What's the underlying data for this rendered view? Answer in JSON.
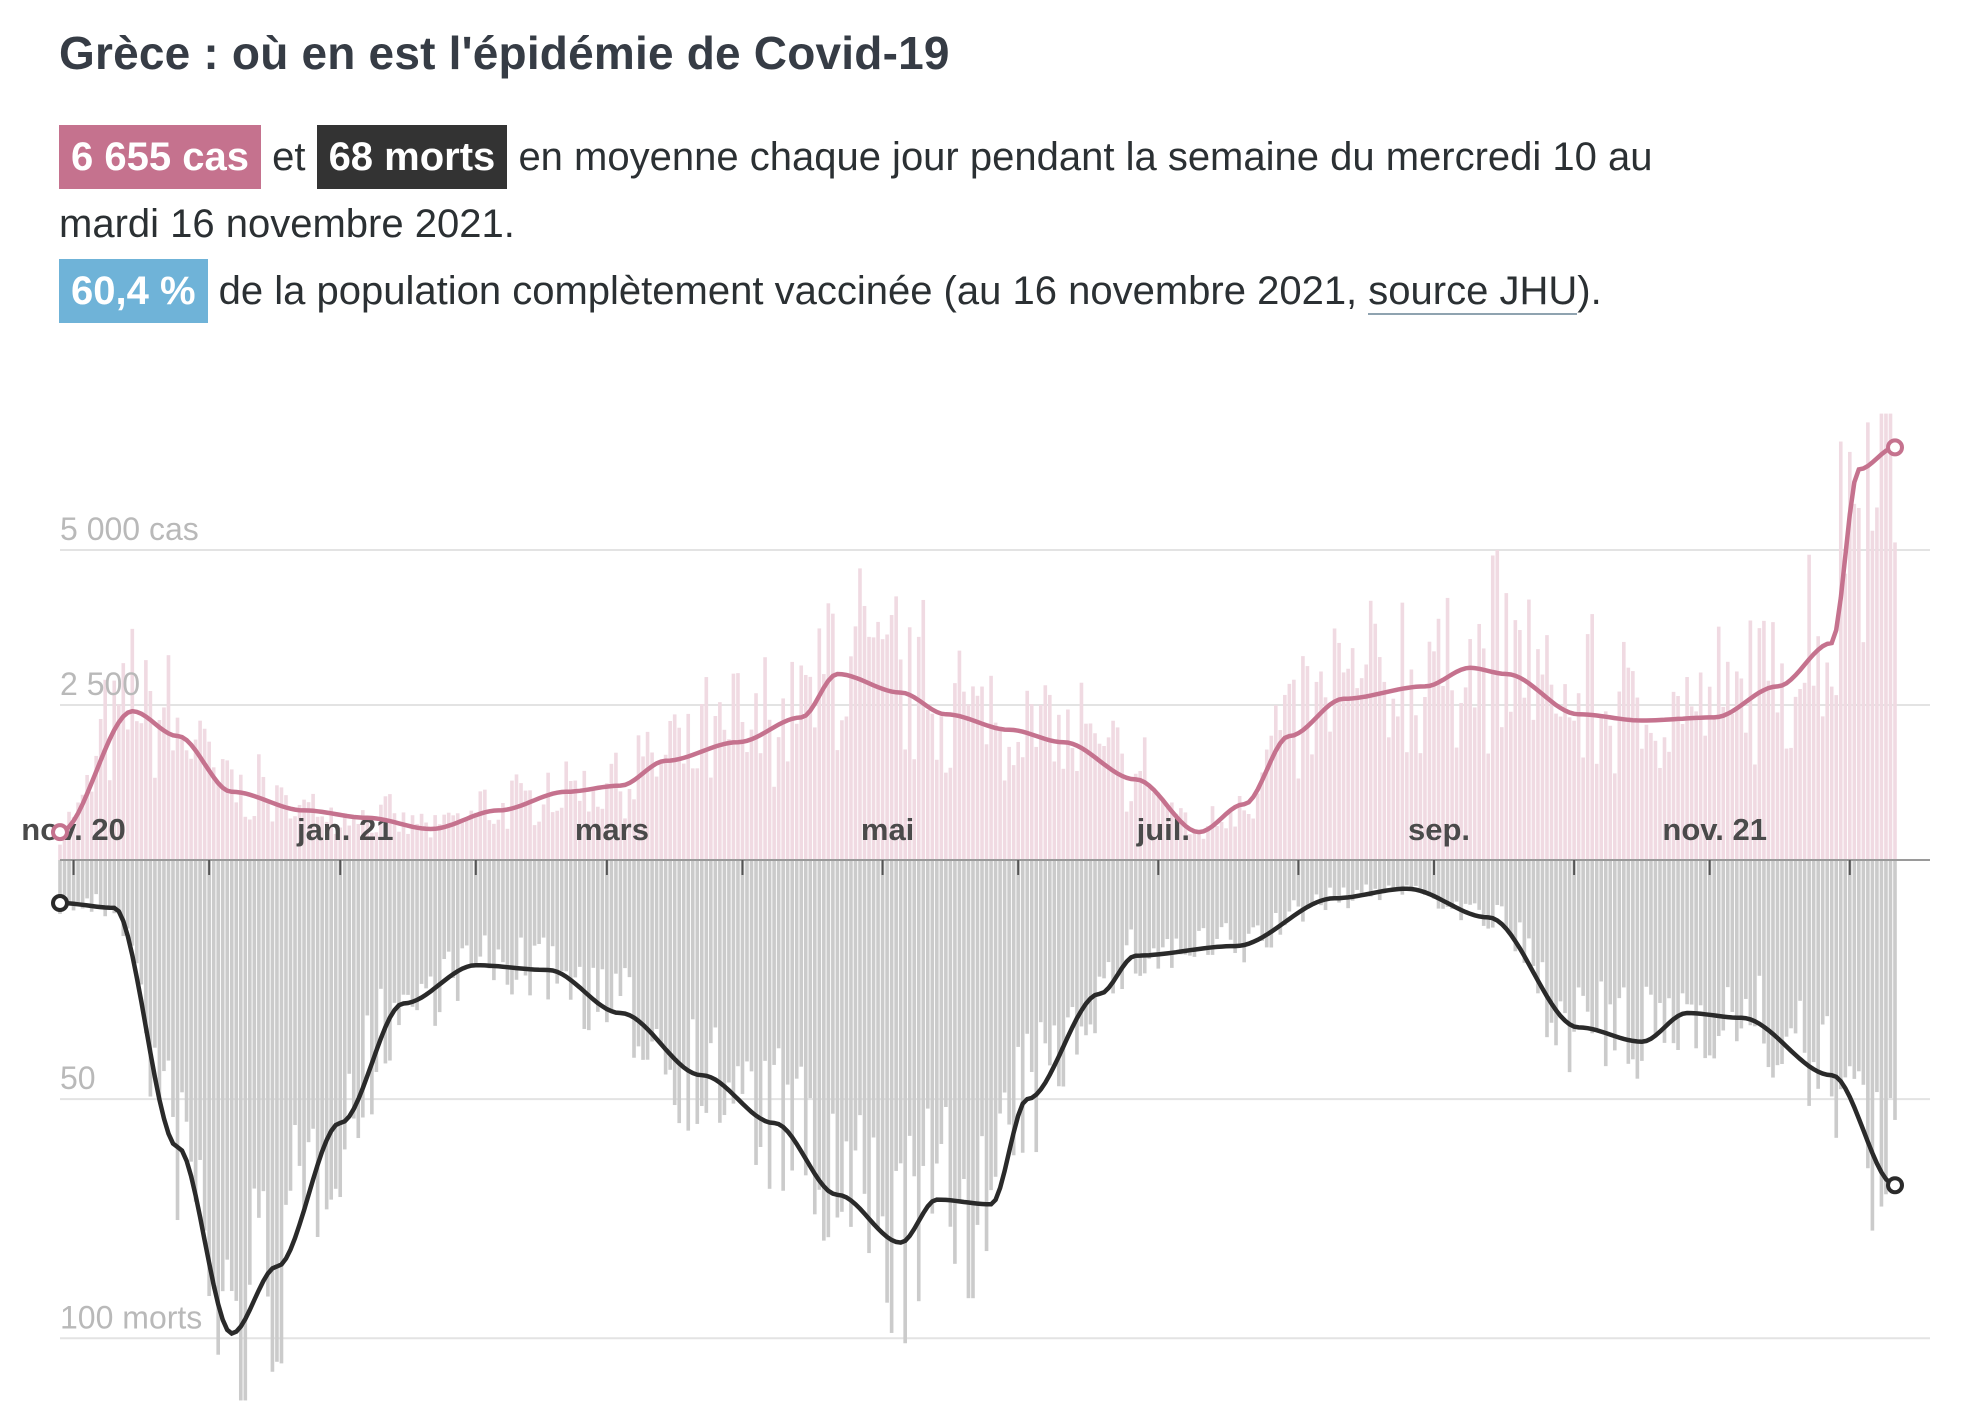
{
  "title": "Grèce : où en est l'épidémie de Covid-19",
  "summary": {
    "cases_badge": "6 655 cas",
    "connector": "et",
    "deaths_badge": "68 morts",
    "line1_rest": "en moyenne chaque jour pendant la semaine du mercredi 10 au mardi 16 novembre 2021.",
    "vacc_badge": "60,4 %",
    "line2_rest": "de la population complètement vaccinée (au 16 novembre 2021,",
    "source_link": "source JHU",
    "line2_end": ")."
  },
  "colors": {
    "cases_line": "#c5728e",
    "cases_bars": "#f0dae2",
    "deaths_line": "#2a2a2a",
    "deaths_bars": "#cbcbcb",
    "vaccination": "#6fb3d8"
  },
  "chart_data": {
    "type": "bar",
    "x_range": [
      "2020-10-29",
      "2021-11-16"
    ],
    "x_tick_labels": [
      "nov. 20",
      "jan. 21",
      "mars",
      "mai",
      "juil.",
      "sep.",
      "nov. 21"
    ],
    "top_panel": {
      "metric": "cas",
      "y_tick_labels": [
        "5 000 cas",
        "2 500"
      ],
      "y_ticks": [
        5000,
        2500
      ],
      "ylim": [
        0,
        7500
      ],
      "last_value": 6655,
      "avg_series": [
        [
          0,
          450
        ],
        [
          16,
          2400
        ],
        [
          26,
          2000
        ],
        [
          38,
          1100
        ],
        [
          54,
          800
        ],
        [
          68,
          680
        ],
        [
          82,
          500
        ],
        [
          97,
          800
        ],
        [
          112,
          1100
        ],
        [
          124,
          1200
        ],
        [
          134,
          1600
        ],
        [
          150,
          1900
        ],
        [
          164,
          2300
        ],
        [
          172,
          3000
        ],
        [
          186,
          2700
        ],
        [
          196,
          2350
        ],
        [
          210,
          2100
        ],
        [
          222,
          1900
        ],
        [
          238,
          1300
        ],
        [
          252,
          450
        ],
        [
          262,
          900
        ],
        [
          272,
          2000
        ],
        [
          284,
          2600
        ],
        [
          302,
          2800
        ],
        [
          312,
          3100
        ],
        [
          320,
          3000
        ],
        [
          336,
          2350
        ],
        [
          350,
          2250
        ],
        [
          366,
          2300
        ],
        [
          380,
          2800
        ],
        [
          392,
          3500
        ],
        [
          398,
          6300
        ],
        [
          406,
          6655
        ]
      ],
      "daily_range": "approx. 300 – 7200 cas/jour"
    },
    "bottom_panel": {
      "metric": "morts",
      "y_tick_labels": [
        "50",
        "100 morts"
      ],
      "y_ticks": [
        50,
        100
      ],
      "ylim": [
        0,
        115
      ],
      "inverted": true,
      "last_value": 68,
      "avg_series": [
        [
          0,
          9
        ],
        [
          12,
          10
        ],
        [
          26,
          60
        ],
        [
          38,
          99
        ],
        [
          48,
          85
        ],
        [
          62,
          55
        ],
        [
          76,
          30
        ],
        [
          92,
          22
        ],
        [
          108,
          23
        ],
        [
          124,
          32
        ],
        [
          142,
          45
        ],
        [
          158,
          55
        ],
        [
          172,
          70
        ],
        [
          186,
          80
        ],
        [
          194,
          71
        ],
        [
          206,
          72
        ],
        [
          214,
          50
        ],
        [
          230,
          28
        ],
        [
          238,
          20
        ],
        [
          260,
          18
        ],
        [
          282,
          8
        ],
        [
          298,
          6
        ],
        [
          316,
          12
        ],
        [
          336,
          35
        ],
        [
          350,
          38
        ],
        [
          360,
          32
        ],
        [
          372,
          33
        ],
        [
          392,
          45
        ],
        [
          406,
          68
        ]
      ],
      "daily_range": "approx. 5 – 115 morts/jour"
    }
  }
}
